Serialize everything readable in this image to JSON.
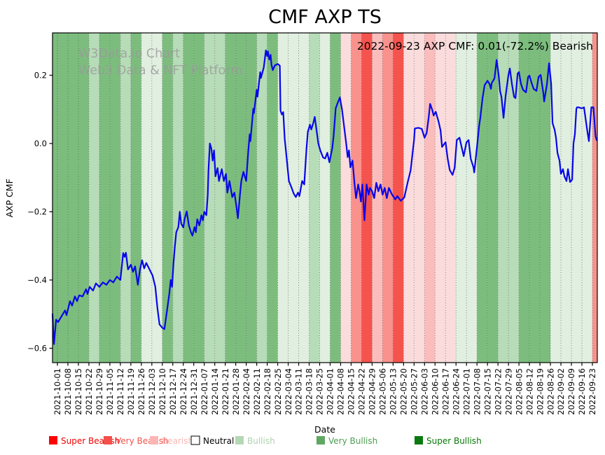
{
  "title": "CMF AXP TS",
  "annotation": "2022-09-23 AXP CMF: 0.01(-72.2%) Bearish",
  "watermark": {
    "line1": "W3Data.io Chart",
    "line2": "Web3 Data & NFT Platform",
    "color": "#9a9a9a"
  },
  "legend": {
    "items": [
      {
        "label": "Super Bearish",
        "swatch": "#fe0000",
        "text_color": "#f40000",
        "filled": true
      },
      {
        "label": "Very Bearish",
        "swatch": "#f4504b",
        "text_color": "#f4504b",
        "filled": true
      },
      {
        "label": "Bearish",
        "swatch": "#fbb6b4",
        "text_color": "#fbb6b4",
        "filled": true
      },
      {
        "label": "Neutral",
        "swatch": "#ffffff",
        "text_color": "#000000",
        "filled": false
      },
      {
        "label": "Bullish",
        "swatch": "#b4d8b4",
        "text_color": "#aed2ae",
        "filled": true
      },
      {
        "label": "Very Bullish",
        "swatch": "#5fa763",
        "text_color": "#4f9d53",
        "filled": true
      },
      {
        "label": "Super Bullish",
        "swatch": "#0a7a0f",
        "text_color": "#067806",
        "filled": true
      }
    ]
  },
  "chart_data": {
    "type": "line",
    "title": "CMF AXP TS",
    "xlabel": "Date",
    "ylabel": "AXP CMF",
    "grid": "vertical-dotted",
    "legend_position": "bottom",
    "line_color": "#0707e8",
    "ylim": [
      -0.642,
      0.324
    ],
    "y_ticks": [
      0.2,
      0.0,
      -0.2,
      -0.4,
      -0.6
    ],
    "y_tick_labels": [
      "0.2",
      "0.0",
      "−0.2",
      "−0.4",
      "−0.6"
    ],
    "x_tick_labels": [
      "2021-10-01",
      "2021-10-08",
      "2021-10-15",
      "2021-10-22",
      "2021-10-29",
      "2021-11-05",
      "2021-11-12",
      "2021-11-19",
      "2021-11-26",
      "2021-12-03",
      "2021-12-10",
      "2021-12-17",
      "2021-12-24",
      "2021-12-31",
      "2022-01-07",
      "2022-01-14",
      "2022-01-21",
      "2022-01-28",
      "2022-02-04",
      "2022-02-11",
      "2022-02-18",
      "2022-02-25",
      "2022-03-04",
      "2022-03-11",
      "2022-03-18",
      "2022-03-25",
      "2022-04-01",
      "2022-04-08",
      "2022-04-15",
      "2022-04-22",
      "2022-04-29",
      "2022-05-06",
      "2022-05-13",
      "2022-05-20",
      "2022-05-27",
      "2022-06-03",
      "2022-06-10",
      "2022-06-17",
      "2022-06-24",
      "2022-07-01",
      "2022-07-08",
      "2022-07-15",
      "2022-07-22",
      "2022-07-29",
      "2022-08-05",
      "2022-08-12",
      "2022-08-19",
      "2022-08-26",
      "2022-09-02",
      "2022-09-09",
      "2022-09-16",
      "2022-09-23"
    ],
    "sentiment_colors": {
      "super-bearish": "#f5534d",
      "very-bearish": "#f9928c",
      "bearish": "#fbbcbc",
      "bearish-pale": "#fbdcdc",
      "bullish-pale": "#e1efe0",
      "bullish": "#b7dcb8",
      "very-bullish": "#7cbd7e"
    },
    "band_sentiments": [
      "very-bullish",
      "very-bullish",
      "very-bullish",
      "bullish",
      "very-bullish",
      "very-bullish",
      "bullish",
      "very-bullish",
      "bullish-pale",
      "bullish-pale",
      "very-bullish",
      "bullish",
      "very-bullish",
      "very-bullish",
      "bullish",
      "bullish",
      "very-bullish",
      "very-bullish",
      "very-bullish",
      "bullish",
      "very-bullish",
      "bullish-pale",
      "bullish-pale",
      "bullish-pale",
      "bullish",
      "bullish-pale",
      "very-bullish",
      "bearish-pale",
      "very-bearish",
      "super-bearish",
      "bearish",
      "very-bearish",
      "super-bearish",
      "bearish-pale",
      "bearish-pale",
      "bearish",
      "bearish-pale",
      "bearish-pale",
      "bullish-pale",
      "bullish-pale",
      "very-bullish",
      "very-bullish",
      "bullish",
      "bullish",
      "very-bullish",
      "very-bullish",
      "very-bullish",
      "bullish-pale",
      "bullish-pale",
      "bullish-pale",
      "bullish-pale",
      "very-bearish"
    ],
    "line": {
      "x_unit": "weeks since 2021-10-01",
      "points": [
        [
          -0.47,
          -0.5
        ],
        [
          -0.4,
          -0.545
        ],
        [
          -0.33,
          -0.588
        ],
        [
          -0.13,
          -0.516
        ],
        [
          0.07,
          -0.523
        ],
        [
          0.4,
          -0.506
        ],
        [
          0.73,
          -0.489
        ],
        [
          0.87,
          -0.503
        ],
        [
          1.2,
          -0.462
        ],
        [
          1.4,
          -0.475
        ],
        [
          1.67,
          -0.448
        ],
        [
          1.87,
          -0.462
        ],
        [
          2.07,
          -0.445
        ],
        [
          2.4,
          -0.448
        ],
        [
          2.73,
          -0.427
        ],
        [
          2.87,
          -0.441
        ],
        [
          3.07,
          -0.42
        ],
        [
          3.4,
          -0.431
        ],
        [
          3.67,
          -0.41
        ],
        [
          4.0,
          -0.42
        ],
        [
          4.33,
          -0.407
        ],
        [
          4.67,
          -0.414
        ],
        [
          5.0,
          -0.4
        ],
        [
          5.33,
          -0.407
        ],
        [
          5.67,
          -0.39
        ],
        [
          6.0,
          -0.4
        ],
        [
          6.27,
          -0.321
        ],
        [
          6.4,
          -0.332
        ],
        [
          6.53,
          -0.32
        ],
        [
          6.73,
          -0.369
        ],
        [
          7.0,
          -0.355
        ],
        [
          7.2,
          -0.376
        ],
        [
          7.4,
          -0.36
        ],
        [
          7.67,
          -0.414
        ],
        [
          7.87,
          -0.369
        ],
        [
          8.07,
          -0.342
        ],
        [
          8.27,
          -0.366
        ],
        [
          8.47,
          -0.35
        ],
        [
          8.73,
          -0.366
        ],
        [
          9.07,
          -0.387
        ],
        [
          9.33,
          -0.42
        ],
        [
          9.53,
          -0.482
        ],
        [
          9.73,
          -0.53
        ],
        [
          10.0,
          -0.54
        ],
        [
          10.2,
          -0.544
        ],
        [
          10.4,
          -0.5
        ],
        [
          10.67,
          -0.44
        ],
        [
          10.8,
          -0.4
        ],
        [
          10.93,
          -0.42
        ],
        [
          11.07,
          -0.35
        ],
        [
          11.2,
          -0.3
        ],
        [
          11.33,
          -0.26
        ],
        [
          11.53,
          -0.245
        ],
        [
          11.67,
          -0.2
        ],
        [
          11.8,
          -0.235
        ],
        [
          12.0,
          -0.246
        ],
        [
          12.13,
          -0.22
        ],
        [
          12.33,
          -0.199
        ],
        [
          12.53,
          -0.24
        ],
        [
          12.73,
          -0.26
        ],
        [
          12.87,
          -0.27
        ],
        [
          13.07,
          -0.245
        ],
        [
          13.2,
          -0.26
        ],
        [
          13.33,
          -0.222
        ],
        [
          13.53,
          -0.24
        ],
        [
          13.73,
          -0.21
        ],
        [
          13.87,
          -0.225
        ],
        [
          14.0,
          -0.2
        ],
        [
          14.2,
          -0.21
        ],
        [
          14.33,
          -0.15
        ],
        [
          14.4,
          -0.08
        ],
        [
          14.53,
          0.0
        ],
        [
          14.67,
          -0.014
        ],
        [
          14.8,
          -0.05
        ],
        [
          14.93,
          -0.02
        ],
        [
          15.07,
          -0.096
        ],
        [
          15.27,
          -0.072
        ],
        [
          15.4,
          -0.11
        ],
        [
          15.67,
          -0.075
        ],
        [
          15.87,
          -0.11
        ],
        [
          16.07,
          -0.089
        ],
        [
          16.2,
          -0.144
        ],
        [
          16.4,
          -0.11
        ],
        [
          16.67,
          -0.157
        ],
        [
          16.87,
          -0.144
        ],
        [
          17.07,
          -0.185
        ],
        [
          17.2,
          -0.219
        ],
        [
          17.4,
          -0.15
        ],
        [
          17.53,
          -0.11
        ],
        [
          17.73,
          -0.083
        ],
        [
          18.0,
          -0.11
        ],
        [
          18.2,
          -0.021
        ],
        [
          18.33,
          0.027
        ],
        [
          18.4,
          0.007
        ],
        [
          18.67,
          0.102
        ],
        [
          18.73,
          0.089
        ],
        [
          19.0,
          0.157
        ],
        [
          19.07,
          0.137
        ],
        [
          19.33,
          0.209
        ],
        [
          19.4,
          0.192
        ],
        [
          19.67,
          0.223
        ],
        [
          19.87,
          0.273
        ],
        [
          20.0,
          0.256
        ],
        [
          20.07,
          0.27
        ],
        [
          20.2,
          0.246
        ],
        [
          20.33,
          0.26
        ],
        [
          20.4,
          0.232
        ],
        [
          20.53,
          0.215
        ],
        [
          20.73,
          0.229
        ],
        [
          21.0,
          0.233
        ],
        [
          21.2,
          0.228
        ],
        [
          21.27,
          0.096
        ],
        [
          21.4,
          0.085
        ],
        [
          21.53,
          0.092
        ],
        [
          21.67,
          0.014
        ],
        [
          21.87,
          -0.048
        ],
        [
          22.07,
          -0.11
        ],
        [
          22.33,
          -0.13
        ],
        [
          22.53,
          -0.147
        ],
        [
          22.73,
          -0.157
        ],
        [
          22.93,
          -0.144
        ],
        [
          23.07,
          -0.154
        ],
        [
          23.33,
          -0.11
        ],
        [
          23.53,
          -0.12
        ],
        [
          23.73,
          -0.021
        ],
        [
          23.87,
          0.034
        ],
        [
          24.07,
          0.055
        ],
        [
          24.2,
          0.041
        ],
        [
          24.4,
          0.061
        ],
        [
          24.53,
          0.078
        ],
        [
          24.87,
          0.0
        ],
        [
          25.07,
          -0.021
        ],
        [
          25.33,
          -0.041
        ],
        [
          25.53,
          -0.044
        ],
        [
          25.73,
          -0.027
        ],
        [
          25.93,
          -0.055
        ],
        [
          26.2,
          -0.014
        ],
        [
          26.33,
          0.021
        ],
        [
          26.53,
          0.103
        ],
        [
          26.73,
          0.12
        ],
        [
          26.93,
          0.135
        ],
        [
          27.13,
          0.1
        ],
        [
          27.33,
          0.05
        ],
        [
          27.53,
          0.0
        ],
        [
          27.67,
          -0.04
        ],
        [
          27.8,
          -0.02
        ],
        [
          27.93,
          -0.07
        ],
        [
          28.13,
          -0.05
        ],
        [
          28.33,
          -0.12
        ],
        [
          28.47,
          -0.16
        ],
        [
          28.67,
          -0.12
        ],
        [
          28.8,
          -0.14
        ],
        [
          28.93,
          -0.17
        ],
        [
          29.07,
          -0.12
        ],
        [
          29.27,
          -0.225
        ],
        [
          29.47,
          -0.12
        ],
        [
          29.67,
          -0.15
        ],
        [
          29.8,
          -0.13
        ],
        [
          30.0,
          -0.14
        ],
        [
          30.2,
          -0.16
        ],
        [
          30.4,
          -0.115
        ],
        [
          30.6,
          -0.14
        ],
        [
          30.8,
          -0.12
        ],
        [
          31.0,
          -0.15
        ],
        [
          31.2,
          -0.13
        ],
        [
          31.4,
          -0.16
        ],
        [
          31.6,
          -0.13
        ],
        [
          31.87,
          -0.148
        ],
        [
          32.2,
          -0.164
        ],
        [
          32.4,
          -0.154
        ],
        [
          32.73,
          -0.168
        ],
        [
          33.07,
          -0.158
        ],
        [
          33.4,
          -0.113
        ],
        [
          33.67,
          -0.079
        ],
        [
          33.87,
          -0.024
        ],
        [
          34.0,
          0.01
        ],
        [
          34.07,
          0.044
        ],
        [
          34.4,
          0.046
        ],
        [
          34.73,
          0.043
        ],
        [
          35.0,
          0.017
        ],
        [
          35.2,
          0.031
        ],
        [
          35.4,
          0.078
        ],
        [
          35.53,
          0.116
        ],
        [
          35.73,
          0.099
        ],
        [
          35.87,
          0.082
        ],
        [
          36.07,
          0.093
        ],
        [
          36.33,
          0.065
        ],
        [
          36.53,
          0.038
        ],
        [
          36.67,
          -0.01
        ],
        [
          37.0,
          0.004
        ],
        [
          37.2,
          -0.044
        ],
        [
          37.4,
          -0.078
        ],
        [
          37.67,
          -0.092
        ],
        [
          37.87,
          -0.071
        ],
        [
          38.07,
          0.01
        ],
        [
          38.33,
          0.017
        ],
        [
          38.53,
          -0.01
        ],
        [
          38.73,
          -0.037
        ],
        [
          39.0,
          0.004
        ],
        [
          39.2,
          0.01
        ],
        [
          39.4,
          -0.044
        ],
        [
          39.67,
          -0.071
        ],
        [
          39.73,
          -0.085
        ],
        [
          40.0,
          -0.01
        ],
        [
          40.2,
          0.051
        ],
        [
          40.33,
          0.078
        ],
        [
          40.53,
          0.133
        ],
        [
          40.73,
          0.171
        ],
        [
          41.0,
          0.184
        ],
        [
          41.2,
          0.174
        ],
        [
          41.33,
          0.16
        ],
        [
          41.4,
          0.177
        ],
        [
          41.67,
          0.191
        ],
        [
          41.87,
          0.245
        ],
        [
          42.07,
          0.2
        ],
        [
          42.2,
          0.153
        ],
        [
          42.33,
          0.137
        ],
        [
          42.53,
          0.075
        ],
        [
          42.73,
          0.14
        ],
        [
          43.0,
          0.201
        ],
        [
          43.13,
          0.22
        ],
        [
          43.33,
          0.174
        ],
        [
          43.53,
          0.137
        ],
        [
          43.67,
          0.133
        ],
        [
          43.87,
          0.205
        ],
        [
          44.0,
          0.209
        ],
        [
          44.2,
          0.174
        ],
        [
          44.4,
          0.157
        ],
        [
          44.67,
          0.15
        ],
        [
          44.87,
          0.195
        ],
        [
          45.0,
          0.199
        ],
        [
          45.2,
          0.178
        ],
        [
          45.4,
          0.16
        ],
        [
          45.67,
          0.154
        ],
        [
          45.87,
          0.195
        ],
        [
          46.07,
          0.201
        ],
        [
          46.33,
          0.147
        ],
        [
          46.4,
          0.123
        ],
        [
          46.67,
          0.174
        ],
        [
          46.87,
          0.235
        ],
        [
          47.07,
          0.175
        ],
        [
          47.2,
          0.06
        ],
        [
          47.4,
          0.04
        ],
        [
          47.53,
          0.017
        ],
        [
          47.67,
          -0.027
        ],
        [
          47.87,
          -0.051
        ],
        [
          48.0,
          -0.089
        ],
        [
          48.2,
          -0.075
        ],
        [
          48.33,
          -0.096
        ],
        [
          48.53,
          -0.11
        ],
        [
          48.67,
          -0.075
        ],
        [
          48.87,
          -0.113
        ],
        [
          49.07,
          -0.106
        ],
        [
          49.2,
          0.0
        ],
        [
          49.33,
          0.027
        ],
        [
          49.47,
          0.102
        ],
        [
          49.53,
          0.106
        ],
        [
          49.67,
          0.106
        ],
        [
          50.0,
          0.103
        ],
        [
          50.2,
          0.106
        ],
        [
          50.53,
          0.034
        ],
        [
          50.67,
          0.007
        ],
        [
          50.9,
          0.106
        ],
        [
          51.1,
          0.106
        ],
        [
          51.3,
          0.021
        ],
        [
          51.4,
          0.01
        ]
      ]
    }
  }
}
